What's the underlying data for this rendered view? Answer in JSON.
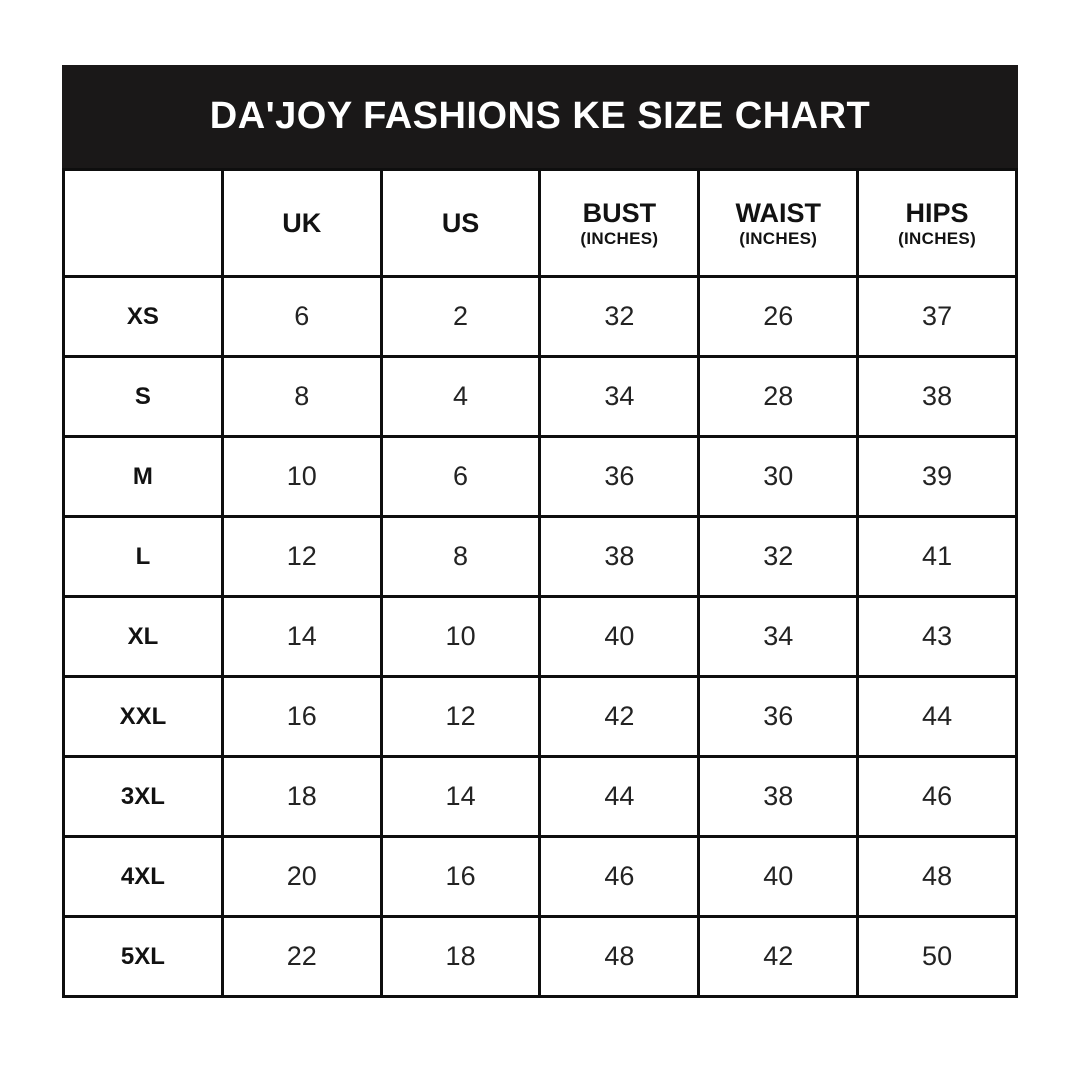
{
  "title": "DA'JOY FASHIONS KE SIZE CHART",
  "colors": {
    "title_bg": "#1a1818",
    "title_text": "#ffffff",
    "border": "#0e0e0e",
    "cell_bg": "#ffffff",
    "text": "#121212"
  },
  "table": {
    "columns": [
      {
        "label": "",
        "sub": ""
      },
      {
        "label": "UK",
        "sub": ""
      },
      {
        "label": "US",
        "sub": ""
      },
      {
        "label": "BUST",
        "sub": "(INCHES)"
      },
      {
        "label": "WAIST",
        "sub": "(INCHES)"
      },
      {
        "label": "HIPS",
        "sub": "(INCHES)"
      }
    ],
    "rows": [
      {
        "size": "XS",
        "uk": "6",
        "us": "2",
        "bust": "32",
        "waist": "26",
        "hips": "37"
      },
      {
        "size": "S",
        "uk": "8",
        "us": "4",
        "bust": "34",
        "waist": "28",
        "hips": "38"
      },
      {
        "size": "M",
        "uk": "10",
        "us": "6",
        "bust": "36",
        "waist": "30",
        "hips": "39"
      },
      {
        "size": "L",
        "uk": "12",
        "us": "8",
        "bust": "38",
        "waist": "32",
        "hips": "41"
      },
      {
        "size": "XL",
        "uk": "14",
        "us": "10",
        "bust": "40",
        "waist": "34",
        "hips": "43"
      },
      {
        "size": "XXL",
        "uk": "16",
        "us": "12",
        "bust": "42",
        "waist": "36",
        "hips": "44"
      },
      {
        "size": "3XL",
        "uk": "18",
        "us": "14",
        "bust": "44",
        "waist": "38",
        "hips": "46"
      },
      {
        "size": "4XL",
        "uk": "20",
        "us": "16",
        "bust": "46",
        "waist": "40",
        "hips": "48"
      },
      {
        "size": "5XL",
        "uk": "22",
        "us": "18",
        "bust": "48",
        "waist": "42",
        "hips": "50"
      }
    ]
  }
}
